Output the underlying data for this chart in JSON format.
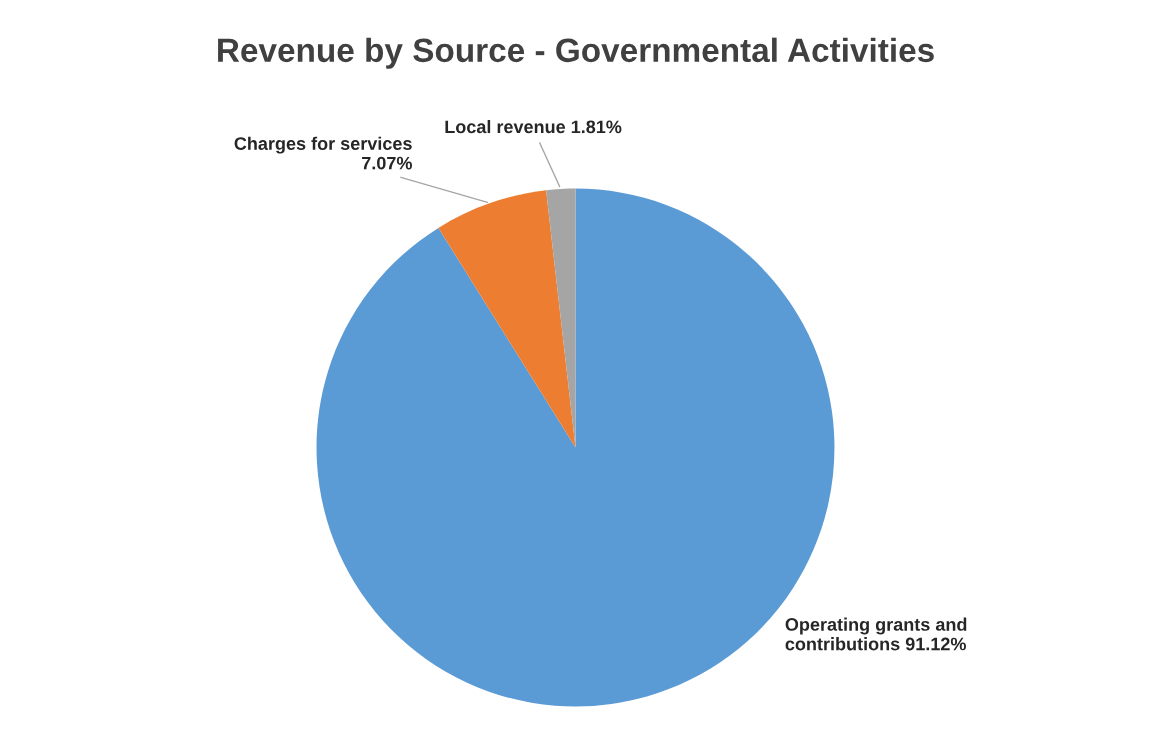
{
  "chart_data": {
    "type": "pie",
    "title": "Revenue by Source - Governmental Activities",
    "categories": [
      "Operating grants and contributions",
      "Charges for services",
      "Local revenue"
    ],
    "values": [
      91.12,
      7.07,
      1.81
    ],
    "value_labels": [
      "91.12%",
      "7.07%",
      "1.81%"
    ],
    "colors": [
      "#5b9bd5",
      "#ed7d31",
      "#a5a5a5"
    ],
    "legend": false
  }
}
